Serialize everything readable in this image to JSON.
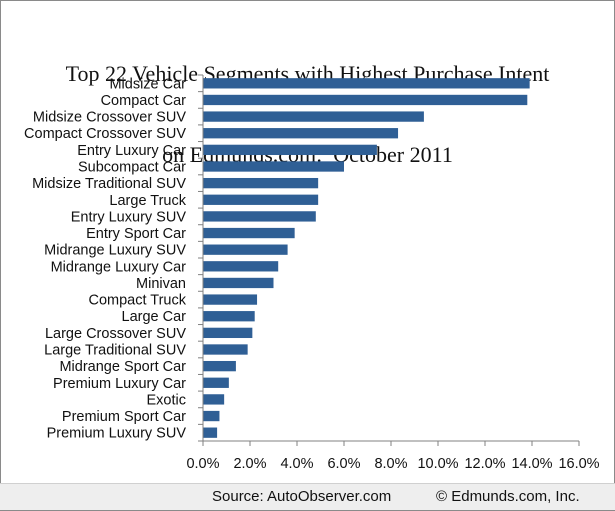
{
  "footer": {
    "source": "Source: AutoObserver.com",
    "copyright": "© Edmunds.com, Inc."
  },
  "colors": {
    "bar": "#2f5f95",
    "axis": "#808080",
    "text": "#111111"
  },
  "chart_data": {
    "type": "bar",
    "orientation": "horizontal",
    "title": [
      "Top 22 Vehicle Segments with Highest Purchase Intent",
      "on Edmunds.com:  October 2011"
    ],
    "xlabel": "",
    "ylabel": "",
    "xlim": [
      0,
      16
    ],
    "x_ticks": [
      "0.0%",
      "2.0%",
      "4.0%",
      "6.0%",
      "8.0%",
      "10.0%",
      "12.0%",
      "14.0%",
      "16.0%"
    ],
    "grid": false,
    "legend": "none",
    "categories": [
      "Midsize Car",
      "Compact Car",
      "Midsize Crossover SUV",
      "Compact Crossover SUV",
      "Entry Luxury Car",
      "Subcompact Car",
      "Midsize Traditional SUV",
      "Large Truck",
      "Entry Luxury SUV",
      "Entry Sport Car",
      "Midrange Luxury SUV",
      "Midrange Luxury Car",
      "Minivan",
      "Compact Truck",
      "Large Car",
      "Large Crossover SUV",
      "Large Traditional SUV",
      "Midrange Sport Car",
      "Premium Luxury Car",
      "Exotic",
      "Premium Sport Car",
      "Premium Luxury SUV"
    ],
    "values": [
      13.9,
      13.8,
      9.4,
      8.3,
      7.4,
      6.0,
      4.9,
      4.9,
      4.8,
      3.9,
      3.6,
      3.2,
      3.0,
      2.3,
      2.2,
      2.1,
      1.9,
      1.4,
      1.1,
      0.9,
      0.7,
      0.6
    ]
  }
}
